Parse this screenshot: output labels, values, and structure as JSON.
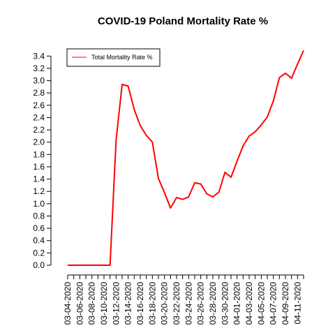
{
  "chart_data": {
    "type": "line",
    "title": "COVID-19 Poland Mortality Rate %",
    "xlabel": "",
    "ylabel": "",
    "ylim": [
      0,
      3.5
    ],
    "yticks": [
      0.0,
      0.2,
      0.4,
      0.6,
      0.8,
      1.0,
      1.2,
      1.4,
      1.6,
      1.8,
      2.0,
      2.2,
      2.4,
      2.6,
      2.8,
      3.0,
      3.2,
      3.4
    ],
    "ytick_labels": [
      "0.0",
      "0.2",
      "0.4",
      "0.6",
      "0.8",
      "1.0",
      "1.2",
      "1.4",
      "1.6",
      "1.8",
      "2.0",
      "2.2",
      "2.4",
      "2.6",
      "2.8",
      "3.0",
      "3.2",
      "3.4"
    ],
    "x": [
      "03-04-2020",
      "03-05-2020",
      "03-06-2020",
      "03-07-2020",
      "03-08-2020",
      "03-09-2020",
      "03-10-2020",
      "03-11-2020",
      "03-12-2020",
      "03-13-2020",
      "03-14-2020",
      "03-15-2020",
      "03-16-2020",
      "03-17-2020",
      "03-18-2020",
      "03-19-2020",
      "03-20-2020",
      "03-21-2020",
      "03-22-2020",
      "03-23-2020",
      "03-24-2020",
      "03-25-2020",
      "03-26-2020",
      "03-27-2020",
      "03-28-2020",
      "03-29-2020",
      "03-30-2020",
      "03-31-2020",
      "04-01-2020",
      "04-02-2020",
      "04-03-2020",
      "04-04-2020",
      "04-05-2020",
      "04-06-2020",
      "04-07-2020",
      "04-08-2020",
      "04-09-2020",
      "04-10-2020",
      "04-11-2020",
      "04-12-2020"
    ],
    "xtick_labels": [
      "03-04-2020",
      "03-06-2020",
      "03-08-2020",
      "03-10-2020",
      "03-12-2020",
      "03-14-2020",
      "03-16-2020",
      "03-18-2020",
      "03-20-2020",
      "03-22-2020",
      "03-24-2020",
      "03-26-2020",
      "03-28-2020",
      "03-30-2020",
      "04-01-2020",
      "04-03-2020",
      "04-05-2020",
      "04-07-2020",
      "04-09-2020",
      "04-11-2020"
    ],
    "series": [
      {
        "name": "Total Mortality Rate %",
        "color": "#ff0000",
        "values": [
          0,
          0,
          0,
          0,
          0,
          0,
          0,
          0,
          2.03,
          2.94,
          2.91,
          2.53,
          2.27,
          2.11,
          2.0,
          1.41,
          1.18,
          0.93,
          1.1,
          1.07,
          1.11,
          1.34,
          1.32,
          1.16,
          1.11,
          1.19,
          1.51,
          1.43,
          1.69,
          1.94,
          2.1,
          2.17,
          2.28,
          2.41,
          2.67,
          3.05,
          3.12,
          3.04,
          3.27,
          3.49
        ]
      }
    ],
    "grid": false,
    "legend": "top-left"
  }
}
